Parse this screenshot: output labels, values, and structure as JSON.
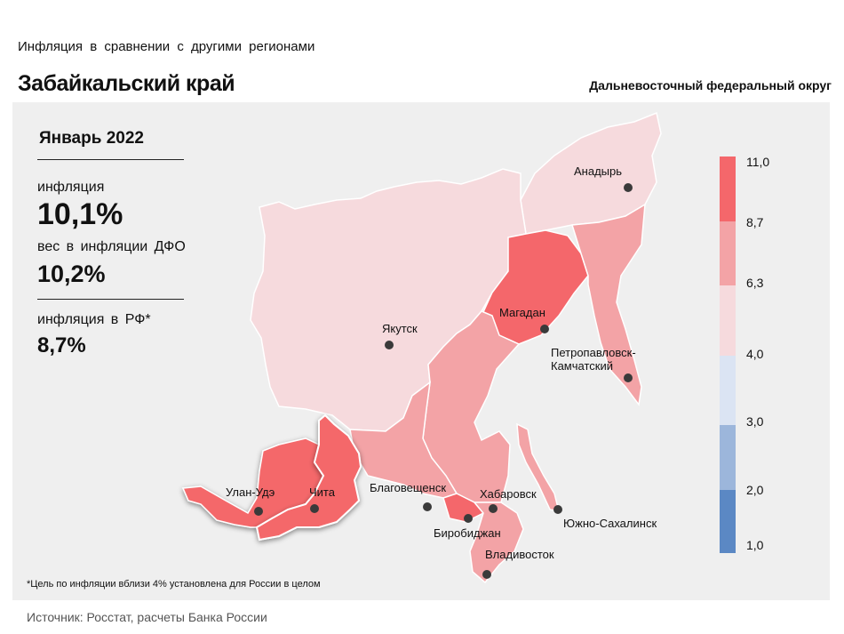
{
  "header": {
    "subtitle": "Инфляция  в сравнении  с другими  регионами",
    "title": "Забайкальский край",
    "district": "Дальневосточный федеральный округ"
  },
  "stats": {
    "period": "Январь 2022",
    "inflation_label": "инфляция",
    "inflation_value": "10,1%",
    "weight_label": "вес в инфляции  ДФО",
    "weight_value": "10,2%",
    "rf_label": "инфляция  в РФ*",
    "rf_value": "8,7%"
  },
  "map": {
    "colors": {
      "over_8_7": "#f4676b",
      "6_3_to_8_7": "#f3a3a6",
      "4_0_to_6_3": "#f6dadd",
      "3_0_to_4_0": "#dbe4f3",
      "2_0_to_3_0": "#9cb6db",
      "1_0_to_2_0": "#5b88c4"
    },
    "cities": {
      "anadyr": "Анадырь",
      "magadan": "Магадан",
      "yakutsk": "Якутск",
      "petropavlovsk_1": "Петропавловск-",
      "petropavlovsk_2": "Камчатский",
      "ulan_ude": "Улан-Удэ",
      "chita": "Чита",
      "blagoveshchensk": "Благовещенск",
      "khabarovsk": "Хабаровск",
      "birobidzhan": "Биробиджан",
      "yuzhno_sakhalinsk": "Южно-Сахалинск",
      "vladivostok": "Владивосток"
    }
  },
  "scale": {
    "labels": [
      "11,0",
      "8,7",
      "6,3",
      "4,0",
      "3,0",
      "2,0",
      "1,0"
    ]
  },
  "footnote": "*Цель по инфляции вблизи 4% установлена для России в целом",
  "source": "Источник: Росстат, расчеты Банка России"
}
